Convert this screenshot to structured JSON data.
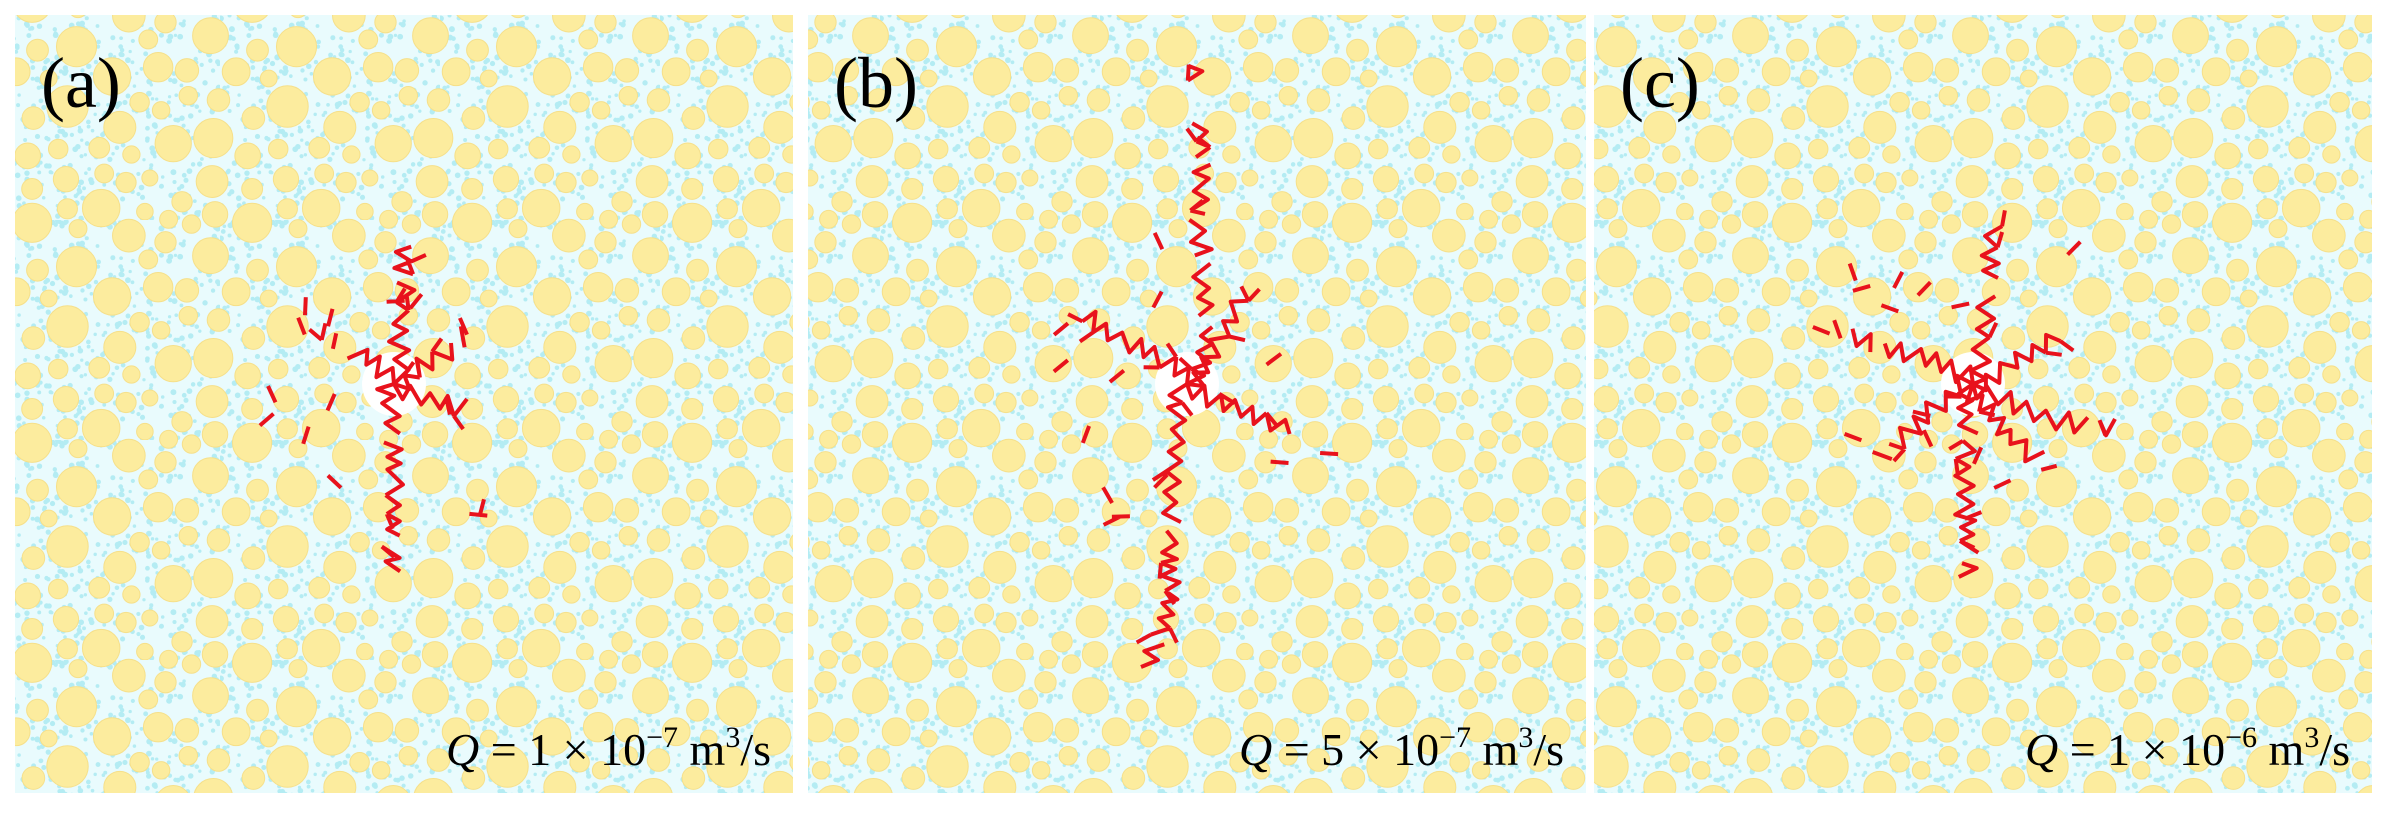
{
  "panels": [
    {
      "label": "(a)",
      "caption": {
        "symbol": "Q",
        "text": " = 1 × 10",
        "exponent": "−7",
        "unit": " m",
        "unit_exponent": "3",
        "suffix": "/s"
      }
    },
    {
      "label": "(b)",
      "caption": {
        "symbol": "Q",
        "text": " = 5 × 10",
        "exponent": "−7",
        "unit": " m",
        "unit_exponent": "3",
        "suffix": "/s"
      }
    },
    {
      "label": "(c)",
      "caption": {
        "symbol": "Q",
        "text": " = 1 × 10",
        "exponent": "−6",
        "unit": " m",
        "unit_exponent": "3",
        "suffix": "/s"
      }
    }
  ]
}
